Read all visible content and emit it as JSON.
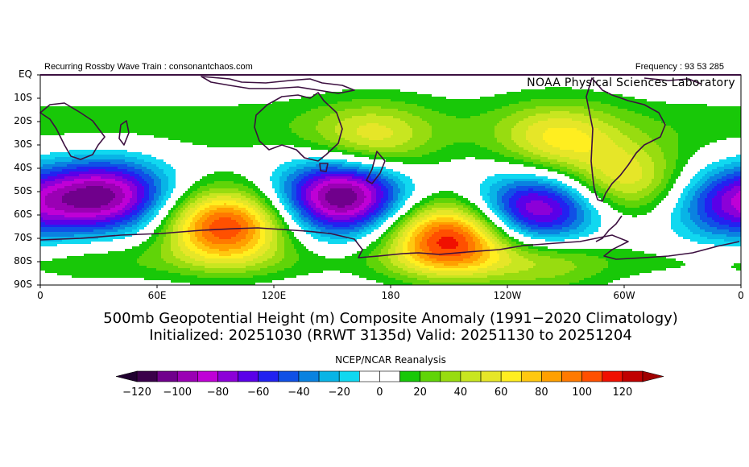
{
  "header": {
    "left_caption": "Recurring Rossby Wave Train : consonantchaos.com",
    "right_caption": "Frequency : 93 53 285",
    "lab_name": "NOAA Physical Sciences Laboratory"
  },
  "axes": {
    "lat_labels": [
      "EQ",
      "10S",
      "20S",
      "30S",
      "40S",
      "50S",
      "60S",
      "70S",
      "80S",
      "90S"
    ],
    "lon_labels": [
      "0",
      "60E",
      "120E",
      "180",
      "120W",
      "60W",
      "0"
    ]
  },
  "titles": {
    "line1": "500mb Geopotential Height (m) Composite Anomaly (1991−2020 Climatology)",
    "line2": "Initialized: 20251030 (RRWT 3135d) Valid: 20251130 to 20251204",
    "source": "NCEP/NCAR Reanalysis"
  },
  "colorbar": {
    "labels": [
      "−120",
      "−100",
      "−80",
      "−60",
      "−40",
      "−20",
      "0",
      "20",
      "40",
      "60",
      "80",
      "100",
      "120"
    ],
    "colors": [
      "#3a004a",
      "#70008c",
      "#9a00b4",
      "#bf00d6",
      "#8c00d8",
      "#5a00e8",
      "#2222f0",
      "#1050e6",
      "#0a82e0",
      "#08b4e6",
      "#10d8f0",
      "#ffffff",
      "#ffffff",
      "#18c808",
      "#60d408",
      "#98dc10",
      "#c8e620",
      "#e6e628",
      "#ffee20",
      "#ffc810",
      "#ffa000",
      "#ff7a00",
      "#ff5000",
      "#f01000",
      "#c00000"
    ],
    "under_color": "#200030",
    "over_color": "#a00000"
  },
  "chart_data": {
    "type": "heatmap",
    "variable": "500mb Geopotential Height (m) Composite Anomaly",
    "units": "m",
    "lon_range": [
      0,
      360
    ],
    "lat_range": [
      0,
      -90
    ],
    "color_range": [
      -120,
      120
    ],
    "anomaly_centers": [
      {
        "lon": 35,
        "lat": -52,
        "value": -95
      },
      {
        "lon": 95,
        "lat": -65,
        "value": 110
      },
      {
        "lon": 155,
        "lat": -52,
        "value": -115
      },
      {
        "lon": 210,
        "lat": -70,
        "value": 115
      },
      {
        "lon": 255,
        "lat": -58,
        "value": -90
      },
      {
        "lon": 302,
        "lat": -45,
        "value": 55
      },
      {
        "lon": 355,
        "lat": -55,
        "value": -65
      },
      {
        "lon": 170,
        "lat": -28,
        "value": 45
      },
      {
        "lon": 266,
        "lat": -28,
        "value": 50
      },
      {
        "lon": 260,
        "lat": -80,
        "value": 30
      },
      {
        "lon": 30,
        "lat": -75,
        "value": 10
      }
    ]
  }
}
